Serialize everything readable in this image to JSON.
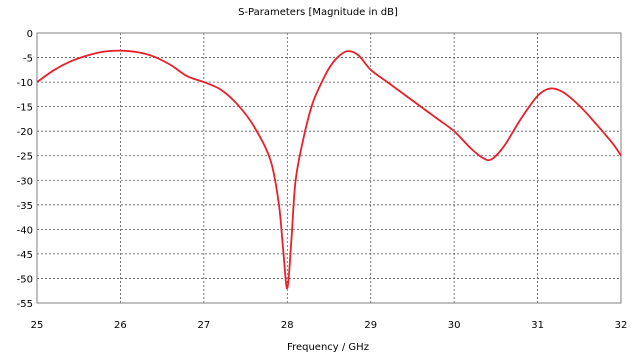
{
  "chart_data": {
    "type": "line",
    "title": "S-Parameters [Magnitude in dB]",
    "xlabel": "Frequency / GHz",
    "ylabel": "",
    "xlim": [
      25,
      32
    ],
    "ylim": [
      -55,
      0
    ],
    "x_ticks": [
      25,
      26,
      27,
      28,
      29,
      30,
      31,
      32
    ],
    "y_ticks": [
      0,
      -5,
      -10,
      -15,
      -20,
      -25,
      -30,
      -35,
      -40,
      -45,
      -50,
      -55
    ],
    "grid": true,
    "legend": "none",
    "series": [
      {
        "color": "#e8202a",
        "points": [
          [
            25.0,
            -10.0
          ],
          [
            25.2,
            -7.6
          ],
          [
            25.4,
            -5.8
          ],
          [
            25.6,
            -4.6
          ],
          [
            25.8,
            -3.8
          ],
          [
            26.0,
            -3.6
          ],
          [
            26.2,
            -3.9
          ],
          [
            26.4,
            -4.8
          ],
          [
            26.6,
            -6.5
          ],
          [
            26.8,
            -8.8
          ],
          [
            27.0,
            -10.0
          ],
          [
            27.2,
            -11.5
          ],
          [
            27.4,
            -14.5
          ],
          [
            27.6,
            -19.0
          ],
          [
            27.8,
            -26.0
          ],
          [
            27.9,
            -35.0
          ],
          [
            27.95,
            -44.0
          ],
          [
            28.0,
            -52.0
          ],
          [
            28.05,
            -42.0
          ],
          [
            28.1,
            -30.0
          ],
          [
            28.2,
            -21.0
          ],
          [
            28.3,
            -14.5
          ],
          [
            28.4,
            -10.5
          ],
          [
            28.5,
            -7.2
          ],
          [
            28.6,
            -5.0
          ],
          [
            28.72,
            -3.7
          ],
          [
            28.85,
            -4.5
          ],
          [
            29.0,
            -7.5
          ],
          [
            29.2,
            -10.0
          ],
          [
            29.4,
            -12.5
          ],
          [
            29.6,
            -15.0
          ],
          [
            29.8,
            -17.5
          ],
          [
            30.0,
            -20.0
          ],
          [
            30.2,
            -23.5
          ],
          [
            30.35,
            -25.5
          ],
          [
            30.45,
            -25.7
          ],
          [
            30.6,
            -23.0
          ],
          [
            30.8,
            -17.5
          ],
          [
            31.0,
            -12.8
          ],
          [
            31.15,
            -11.3
          ],
          [
            31.3,
            -12.0
          ],
          [
            31.5,
            -14.8
          ],
          [
            31.7,
            -18.5
          ],
          [
            31.9,
            -22.5
          ],
          [
            32.0,
            -25.0
          ]
        ]
      }
    ]
  }
}
